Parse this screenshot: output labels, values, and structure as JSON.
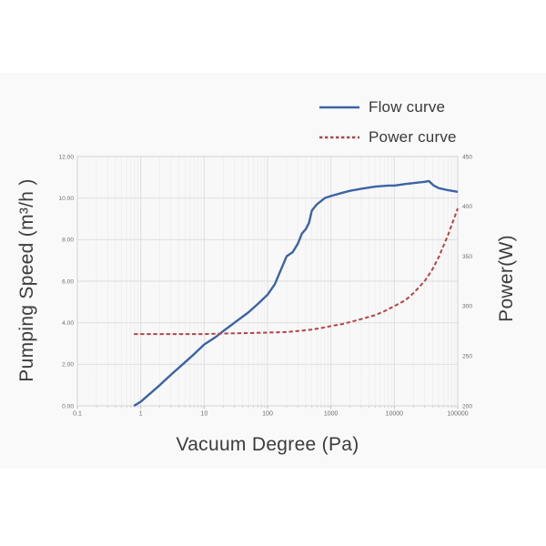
{
  "legend": {
    "flow_label": "Flow curve",
    "power_label": "Power curve"
  },
  "axes": {
    "x_title": "Vacuum Degree (Pa)",
    "y_left_title": "Pumping Speed (m³/h )",
    "y_right_title": "Power(W)",
    "x_ticks": [
      "0.1",
      "1",
      "10",
      "100",
      "1000",
      "10000",
      "100000"
    ],
    "y_left_ticks": [
      "12.00",
      "10.00",
      "8.00",
      "6.00",
      "4.00",
      "2.00",
      "0.00"
    ],
    "y_right_ticks": [
      "450",
      "400",
      "350",
      "300",
      "250",
      "200"
    ]
  },
  "colors": {
    "flow": "#3a64a6",
    "power": "#b64343",
    "grid_major": "#dcdcdc",
    "grid_minor": "#ececec",
    "plot_border": "#d2d2d2",
    "tick_text": "#6e6e6e",
    "plot_bg": "#f8f8f8"
  },
  "chart_data": {
    "type": "line",
    "title": "",
    "xlabel": "Vacuum Degree (Pa)",
    "ylabel_left": "Pumping Speed (m3/h)",
    "ylabel_right": "Power(W)",
    "x_scale": "log",
    "x_range": [
      0.1,
      100000
    ],
    "y_left_range": [
      0,
      12
    ],
    "y_right_range": [
      200,
      450
    ],
    "grid": true,
    "legend_position": "top-right",
    "series": [
      {
        "name": "Flow curve",
        "axis": "left",
        "style": "solid",
        "color": "#3a64a6",
        "units": "m3/h",
        "points": [
          [
            0.78,
            0.0
          ],
          [
            1,
            0.2
          ],
          [
            2,
            1.0
          ],
          [
            3,
            1.5
          ],
          [
            5,
            2.1
          ],
          [
            7,
            2.5
          ],
          [
            10,
            2.95
          ],
          [
            15,
            3.3
          ],
          [
            20,
            3.6
          ],
          [
            30,
            4.0
          ],
          [
            50,
            4.5
          ],
          [
            70,
            4.9
          ],
          [
            100,
            5.35
          ],
          [
            130,
            5.85
          ],
          [
            160,
            6.5
          ],
          [
            200,
            7.2
          ],
          [
            250,
            7.4
          ],
          [
            300,
            7.8
          ],
          [
            350,
            8.3
          ],
          [
            400,
            8.5
          ],
          [
            450,
            8.8
          ],
          [
            500,
            9.4
          ],
          [
            600,
            9.7
          ],
          [
            800,
            10.0
          ],
          [
            1000,
            10.1
          ],
          [
            1500,
            10.25
          ],
          [
            2000,
            10.35
          ],
          [
            3000,
            10.45
          ],
          [
            5000,
            10.55
          ],
          [
            8000,
            10.6
          ],
          [
            10000,
            10.6
          ],
          [
            15000,
            10.68
          ],
          [
            20000,
            10.72
          ],
          [
            30000,
            10.78
          ],
          [
            35000,
            10.82
          ],
          [
            42000,
            10.6
          ],
          [
            50000,
            10.48
          ],
          [
            70000,
            10.38
          ],
          [
            100000,
            10.3
          ]
        ]
      },
      {
        "name": "Power curve",
        "axis": "right",
        "style": "dashed",
        "color": "#b64343",
        "units": "W",
        "points": [
          [
            0.78,
            272
          ],
          [
            2,
            272
          ],
          [
            5,
            272
          ],
          [
            10,
            272
          ],
          [
            20,
            272.5
          ],
          [
            50,
            273
          ],
          [
            100,
            273.5
          ],
          [
            200,
            274
          ],
          [
            300,
            275
          ],
          [
            500,
            276.5
          ],
          [
            700,
            278
          ],
          [
            1000,
            280
          ],
          [
            1500,
            282
          ],
          [
            2000,
            284
          ],
          [
            3000,
            287
          ],
          [
            5000,
            291
          ],
          [
            7000,
            295
          ],
          [
            10000,
            300
          ],
          [
            15000,
            306
          ],
          [
            20000,
            313
          ],
          [
            30000,
            325
          ],
          [
            40000,
            337
          ],
          [
            50000,
            349
          ],
          [
            70000,
            371
          ],
          [
            100000,
            398
          ]
        ]
      }
    ]
  }
}
